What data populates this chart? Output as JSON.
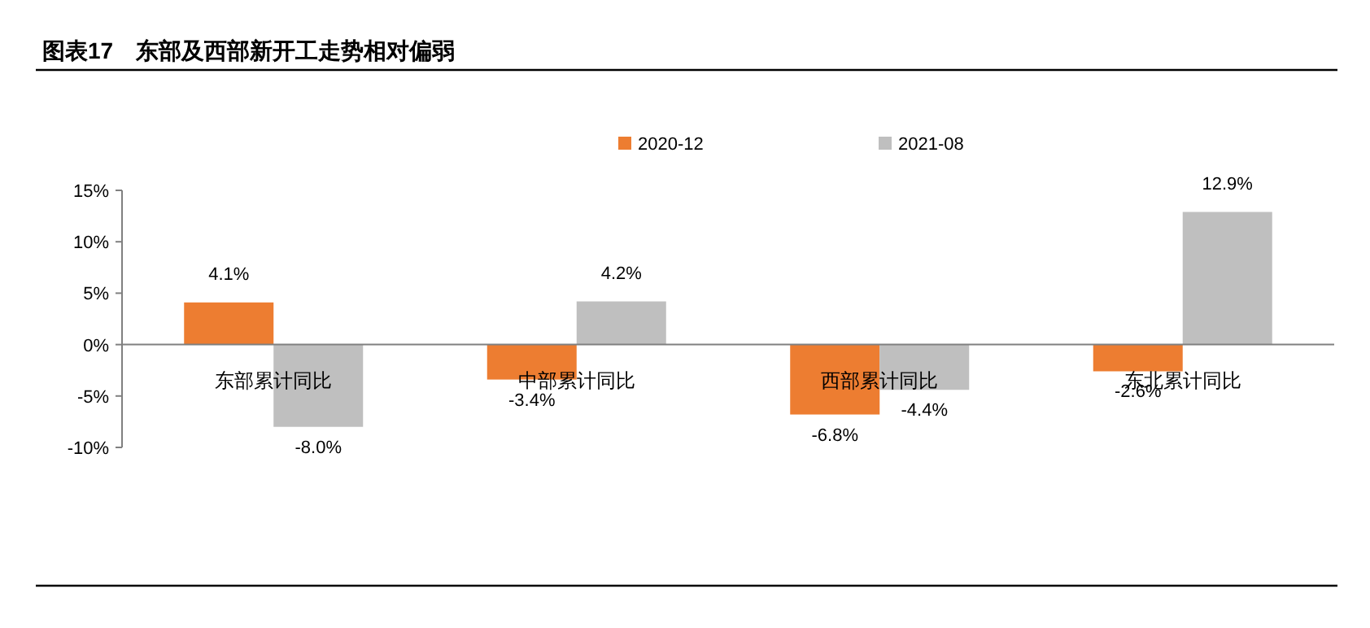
{
  "chart_data": {
    "type": "bar",
    "title": "图表17　东部及西部新开工走势相对偏弱",
    "categories": [
      "东部累计同比",
      "中部累计同比",
      "西部累计同比",
      "东北累计同比"
    ],
    "series": [
      {
        "name": "2020-12",
        "color": "#ed7d31",
        "values": [
          4.1,
          -3.4,
          -6.8,
          -2.6
        ],
        "value_labels": [
          "4.1%",
          "-3.4%",
          "-6.8%",
          "-2.6%"
        ]
      },
      {
        "name": "2021-08",
        "color": "#bfbfbf",
        "values": [
          -8.0,
          4.2,
          -4.4,
          12.9
        ],
        "value_labels": [
          "-8.0%",
          "4.2%",
          "-4.4%",
          "12.9%"
        ]
      }
    ],
    "ylim": [
      -10,
      15
    ],
    "yticks": [
      {
        "value": -10,
        "label": "-10%"
      },
      {
        "value": -5,
        "label": "-5%"
      },
      {
        "value": 0,
        "label": "0%"
      },
      {
        "value": 5,
        "label": "5%"
      },
      {
        "value": 10,
        "label": "10%"
      },
      {
        "value": 15,
        "label": "15%"
      }
    ],
    "legend": "top",
    "grid": false
  }
}
